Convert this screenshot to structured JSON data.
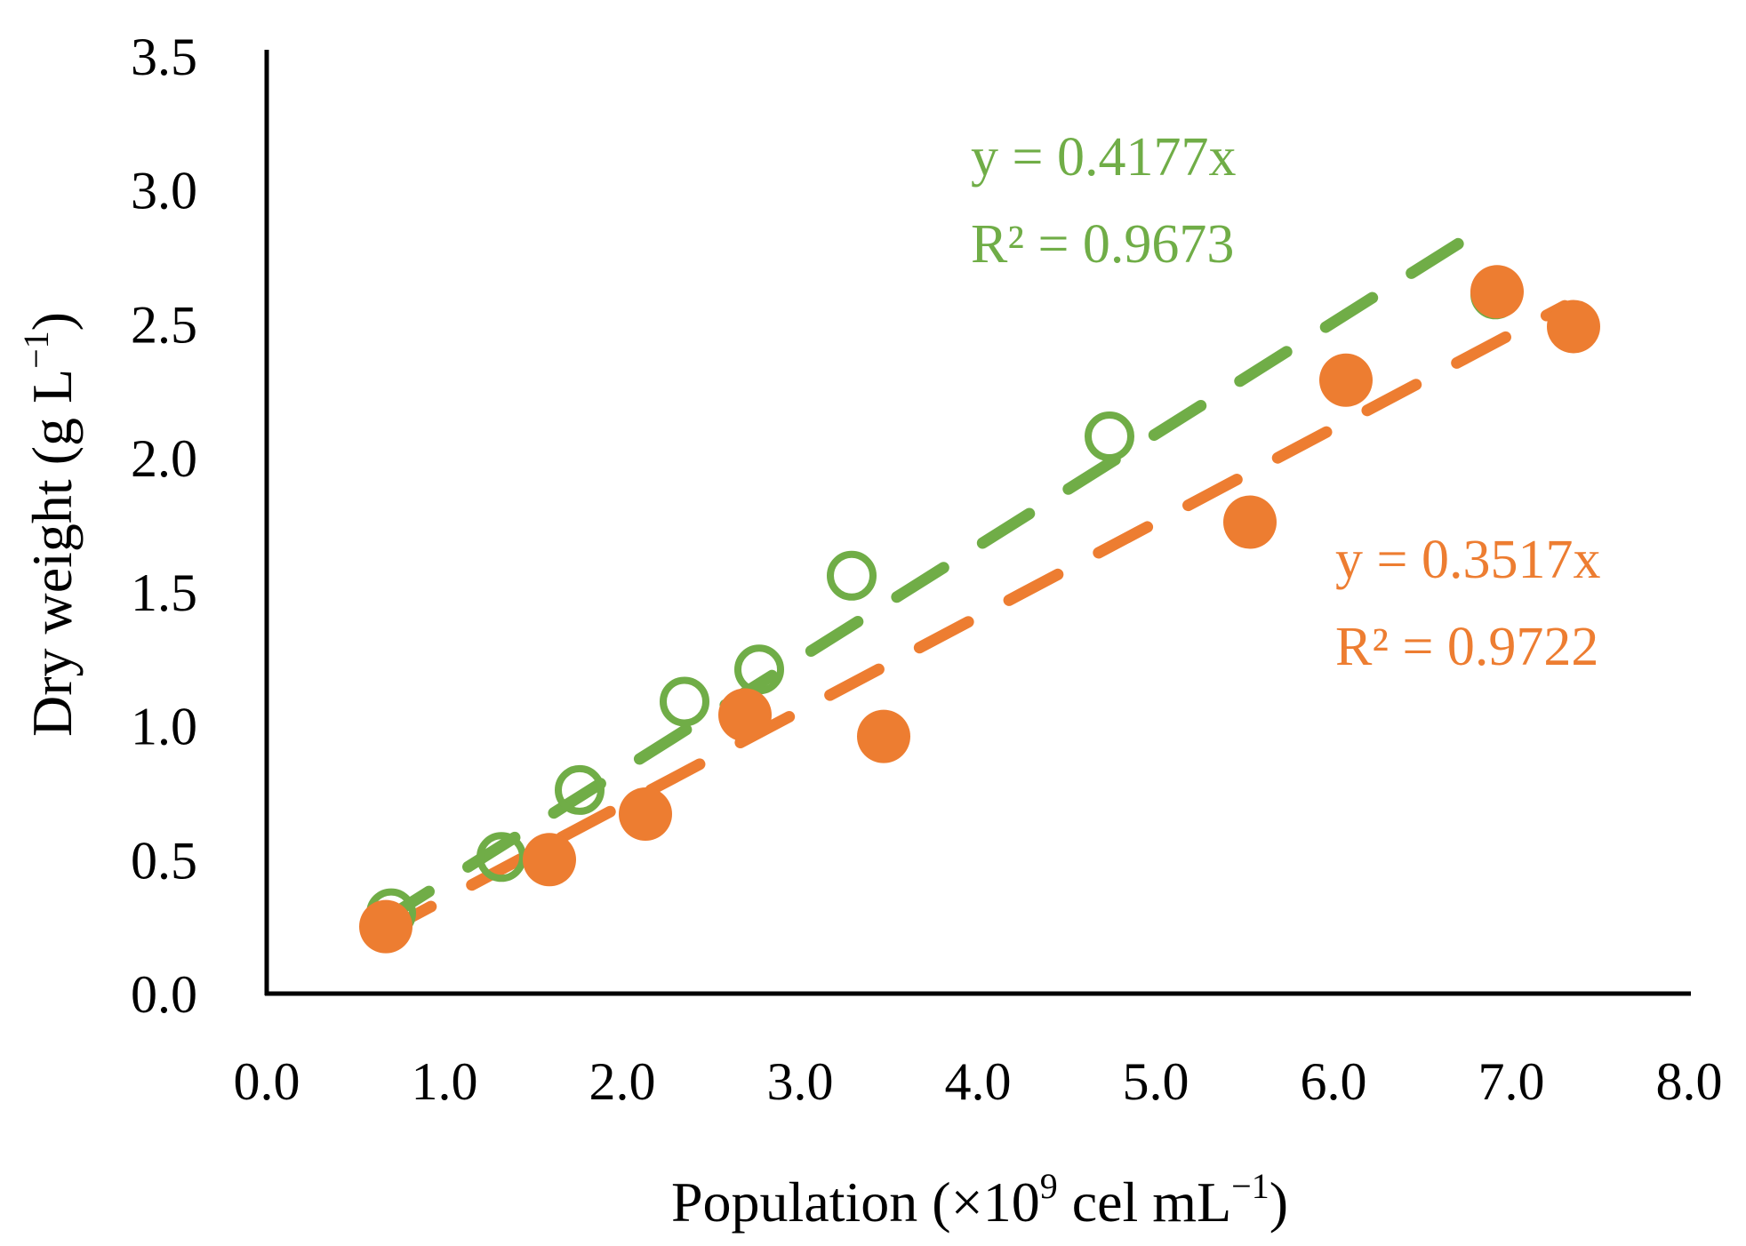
{
  "chart_data": {
    "type": "scatter",
    "title": "",
    "xlabel": {
      "main": "Population (",
      "sym": "×10",
      "exp": "9",
      "rest": " cel mL",
      "exp2": "−1",
      "close": ")"
    },
    "ylabel": {
      "main": "Dry weight (g L",
      "exp": "−1",
      "close": ")"
    },
    "xlim": [
      0,
      8
    ],
    "ylim": [
      0,
      3.5
    ],
    "x_ticks": [
      "0.0",
      "1.0",
      "2.0",
      "3.0",
      "4.0",
      "5.0",
      "6.0",
      "7.0",
      "8.0"
    ],
    "y_ticks": [
      "0.0",
      "0.5",
      "1.0",
      "1.5",
      "2.0",
      "2.5",
      "3.0",
      "3.5"
    ],
    "grid": false,
    "legend": "none",
    "series": [
      {
        "color": "#70ad47",
        "marker": "open-circle",
        "x": [
          0.7,
          1.32,
          1.76,
          2.35,
          2.77,
          3.29,
          4.74,
          6.91
        ],
        "y": [
          0.3,
          0.51,
          0.76,
          1.09,
          1.21,
          1.56,
          2.08,
          2.61
        ],
        "trendline": {
          "slope": 0.4177,
          "x_range": [
            0.65,
            6.9
          ],
          "equation": "y = 0.4177x",
          "r2": "R² = 0.9673"
        }
      },
      {
        "color": "#ed7d31",
        "marker": "filled-circle",
        "x": [
          0.67,
          1.59,
          2.13,
          2.69,
          3.47,
          5.53,
          6.07,
          6.92,
          7.35
        ],
        "y": [
          0.25,
          0.5,
          0.67,
          1.04,
          0.96,
          1.76,
          2.29,
          2.62,
          2.49
        ],
        "trendline": {
          "slope": 0.3517,
          "x_range": [
            0.65,
            7.3
          ],
          "equation": "y = 0.3517x",
          "r2": "R² = 0.9722"
        }
      }
    ]
  }
}
